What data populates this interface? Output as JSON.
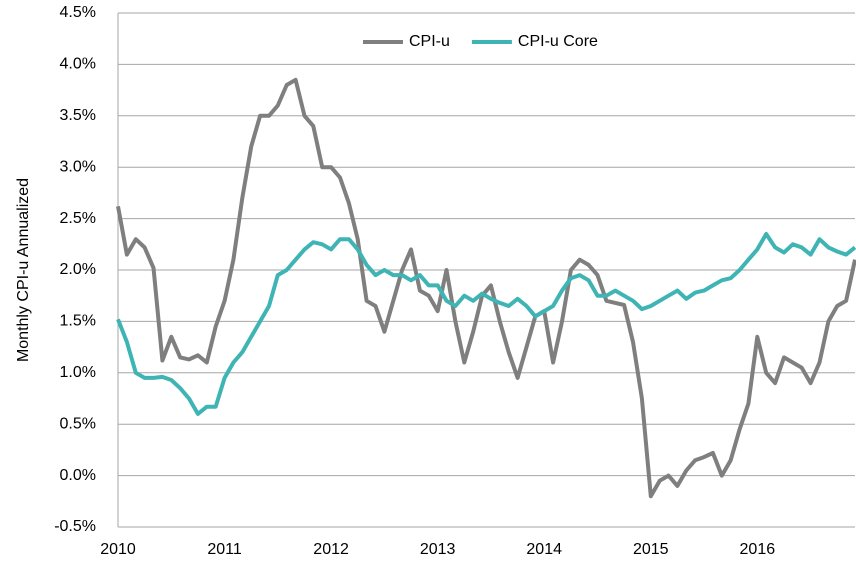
{
  "chart_data": {
    "type": "line",
    "y_label": "Monthly CPI-u Annualized",
    "categories": [
      "2010",
      null,
      null,
      null,
      null,
      null,
      null,
      null,
      null,
      null,
      null,
      null,
      "2011",
      null,
      null,
      null,
      null,
      null,
      null,
      null,
      null,
      null,
      null,
      null,
      "2012",
      null,
      null,
      null,
      null,
      null,
      null,
      null,
      null,
      null,
      null,
      null,
      "2013",
      null,
      null,
      null,
      null,
      null,
      null,
      null,
      null,
      null,
      null,
      null,
      "2014",
      null,
      null,
      null,
      null,
      null,
      null,
      null,
      null,
      null,
      null,
      null,
      "2015",
      null,
      null,
      null,
      null,
      null,
      null,
      null,
      null,
      null,
      null,
      null,
      "2016",
      null,
      null,
      null,
      null,
      null,
      null,
      null,
      null,
      null,
      null,
      null
    ],
    "series": [
      {
        "name": "CPI-u",
        "color": "#7f7f7f",
        "values": [
          2.62,
          2.15,
          2.3,
          2.22,
          2.02,
          1.12,
          1.35,
          1.15,
          1.13,
          1.17,
          1.1,
          1.45,
          1.7,
          2.1,
          2.7,
          3.2,
          3.5,
          3.5,
          3.6,
          3.8,
          3.85,
          3.5,
          3.4,
          3.0,
          3.0,
          2.9,
          2.65,
          2.3,
          1.7,
          1.65,
          1.4,
          1.7,
          2.0,
          2.2,
          1.8,
          1.75,
          1.6,
          2.0,
          1.5,
          1.1,
          1.4,
          1.75,
          1.85,
          1.5,
          1.2,
          0.95,
          1.25,
          1.55,
          1.6,
          1.1,
          1.5,
          2.0,
          2.1,
          2.05,
          1.95,
          1.7,
          1.68,
          1.66,
          1.3,
          0.75,
          -0.2,
          -0.05,
          0.0,
          -0.1,
          0.05,
          0.15,
          0.18,
          0.22,
          0.0,
          0.15,
          0.45,
          0.7,
          1.35,
          1.0,
          0.9,
          1.15,
          1.1,
          1.05,
          0.9,
          1.1,
          1.5,
          1.65,
          1.7,
          2.1
        ]
      },
      {
        "name": "CPI-u Core",
        "color": "#3fb4b4",
        "values": [
          1.52,
          1.3,
          1.0,
          0.95,
          0.95,
          0.96,
          0.93,
          0.85,
          0.75,
          0.6,
          0.67,
          0.67,
          0.95,
          1.1,
          1.2,
          1.35,
          1.5,
          1.65,
          1.95,
          2.0,
          2.1,
          2.2,
          2.27,
          2.25,
          2.2,
          2.3,
          2.3,
          2.2,
          2.05,
          1.95,
          2.0,
          1.95,
          1.95,
          1.9,
          1.95,
          1.85,
          1.85,
          1.7,
          1.65,
          1.75,
          1.7,
          1.77,
          1.72,
          1.68,
          1.65,
          1.72,
          1.65,
          1.55,
          1.6,
          1.65,
          1.8,
          1.92,
          1.95,
          1.9,
          1.75,
          1.75,
          1.8,
          1.75,
          1.7,
          1.62,
          1.65,
          1.7,
          1.75,
          1.8,
          1.72,
          1.78,
          1.8,
          1.85,
          1.9,
          1.92,
          2.0,
          2.1,
          2.2,
          2.35,
          2.22,
          2.17,
          2.25,
          2.22,
          2.15,
          2.3,
          2.22,
          2.18,
          2.15,
          2.22
        ]
      }
    ],
    "ylim": [
      -0.5,
      4.5
    ],
    "yticks": [
      {
        "value": -0.5,
        "label": "-0.5%"
      },
      {
        "value": 0,
        "label": "0.0%"
      },
      {
        "value": 0.5,
        "label": "0.5%"
      },
      {
        "value": 1,
        "label": "1.0%"
      },
      {
        "value": 1.5,
        "label": "1.5%"
      },
      {
        "value": 2,
        "label": "2.0%"
      },
      {
        "value": 2.5,
        "label": "2.5%"
      },
      {
        "value": 3,
        "label": "3.0%"
      },
      {
        "value": 3.5,
        "label": "3.5%"
      },
      {
        "value": 4,
        "label": "4.0%"
      },
      {
        "value": 4.5,
        "label": "4.5%"
      }
    ],
    "grid": true,
    "legend": "top"
  }
}
